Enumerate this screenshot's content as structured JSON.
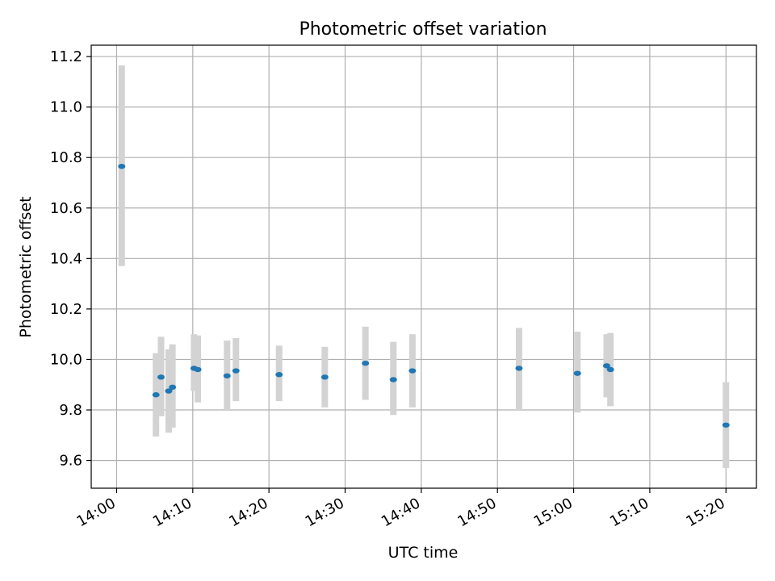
{
  "chart_data": {
    "type": "scatter",
    "title": "Photometric offset variation",
    "xlabel": "UTC time",
    "ylabel": "Photometric offset",
    "x_unit": "time HH:MM",
    "xlim": [
      "13:56:40",
      "15:24:00"
    ],
    "ylim": [
      9.49,
      11.245
    ],
    "x_ticks": [
      "14:00",
      "14:10",
      "14:20",
      "14:30",
      "14:40",
      "14:50",
      "15:00",
      "15:10",
      "15:20"
    ],
    "y_ticks": [
      9.6,
      9.8,
      10.0,
      10.2,
      10.4,
      10.6,
      10.8,
      11.0,
      11.2
    ],
    "y_tick_labels": [
      "9.6",
      "9.8",
      "10.0",
      "10.2",
      "10.4",
      "10.6",
      "10.8",
      "11.0",
      "11.2"
    ],
    "grid": true,
    "marker_color": "#1f77b4",
    "errorbar_color": "#d3d3d3",
    "points": [
      {
        "x": "14:00:40",
        "y": 10.765,
        "yerr_low": 10.37,
        "yerr_high": 11.165
      },
      {
        "x": "14:05:10",
        "y": 9.86,
        "yerr_low": 9.695,
        "yerr_high": 10.025
      },
      {
        "x": "14:05:50",
        "y": 9.93,
        "yerr_low": 9.775,
        "yerr_high": 10.09
      },
      {
        "x": "14:06:50",
        "y": 9.875,
        "yerr_low": 9.71,
        "yerr_high": 10.04
      },
      {
        "x": "14:07:20",
        "y": 9.89,
        "yerr_low": 9.73,
        "yerr_high": 10.06
      },
      {
        "x": "14:10:10",
        "y": 9.965,
        "yerr_low": 9.875,
        "yerr_high": 10.1
      },
      {
        "x": "14:10:40",
        "y": 9.96,
        "yerr_low": 9.83,
        "yerr_high": 10.095
      },
      {
        "x": "14:14:30",
        "y": 9.935,
        "yerr_low": 9.8,
        "yerr_high": 10.075
      },
      {
        "x": "14:15:40",
        "y": 9.955,
        "yerr_low": 9.835,
        "yerr_high": 10.085
      },
      {
        "x": "14:21:20",
        "y": 9.94,
        "yerr_low": 9.835,
        "yerr_high": 10.055
      },
      {
        "x": "14:27:20",
        "y": 9.93,
        "yerr_low": 9.81,
        "yerr_high": 10.05
      },
      {
        "x": "14:32:40",
        "y": 9.985,
        "yerr_low": 9.84,
        "yerr_high": 10.13
      },
      {
        "x": "14:36:20",
        "y": 9.92,
        "yerr_low": 9.78,
        "yerr_high": 10.07
      },
      {
        "x": "14:38:50",
        "y": 9.955,
        "yerr_low": 9.81,
        "yerr_high": 10.1
      },
      {
        "x": "14:52:50",
        "y": 9.965,
        "yerr_low": 9.8,
        "yerr_high": 10.125
      },
      {
        "x": "15:00:30",
        "y": 9.945,
        "yerr_low": 9.79,
        "yerr_high": 10.11
      },
      {
        "x": "15:04:20",
        "y": 9.975,
        "yerr_low": 9.85,
        "yerr_high": 10.1
      },
      {
        "x": "15:04:50",
        "y": 9.96,
        "yerr_low": 9.815,
        "yerr_high": 10.105
      },
      {
        "x": "15:20:00",
        "y": 9.74,
        "yerr_low": 9.57,
        "yerr_high": 9.91
      }
    ]
  }
}
